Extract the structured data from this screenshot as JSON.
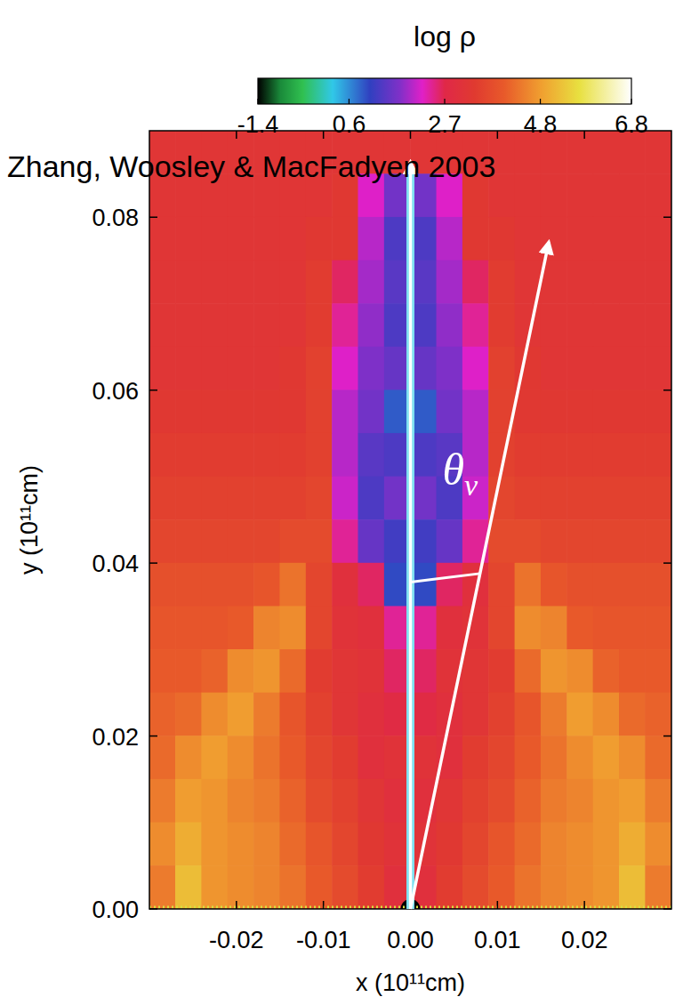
{
  "chart_data": {
    "type": "heatmap",
    "title": "log ρ",
    "annotations": [
      "Zhang, Woosley & MacFadyen 2003"
    ],
    "angle_label": {
      "text": "θ",
      "subscript": "v"
    },
    "x_label": "x (10¹¹cm)",
    "y_label": "y (10¹¹cm)",
    "xlim": [
      -0.03,
      0.03
    ],
    "ylim": [
      0,
      0.09
    ],
    "xticks": [
      -0.02,
      -0.01,
      {
        "value": 0,
        "label": "0.00"
      },
      0.01,
      0.02
    ],
    "yticks": [
      {
        "value": 0,
        "label": "0.00"
      },
      0.02,
      0.04,
      0.06,
      0.08
    ],
    "colorbar_range": [
      -1.4,
      6.8
    ],
    "colorbar_ticks": [
      -1.4,
      0.6,
      2.7,
      4.8,
      6.8
    ],
    "x": [
      -0.0285,
      -0.0255,
      -0.0225,
      -0.0195,
      -0.0165,
      -0.0135,
      -0.0105,
      -0.0075,
      -0.0045,
      -0.0015,
      0.0015,
      0.0045,
      0.0075,
      0.0105,
      0.0135,
      0.0165,
      0.0195,
      0.0225,
      0.0255,
      0.0285
    ],
    "y": [
      0.0875,
      0.0825,
      0.0775,
      0.0725,
      0.0675,
      0.0625,
      0.0575,
      0.0525,
      0.0475,
      0.0425,
      0.0375,
      0.0325,
      0.0275,
      0.0225,
      0.0175,
      0.0125,
      0.0075,
      0.0025
    ],
    "z": [
      [
        3.2,
        3.2,
        3.2,
        3.2,
        3.2,
        3.2,
        3.2,
        3.2,
        3.2,
        3.2,
        3.2,
        3.2,
        3.2,
        3.2,
        3.2,
        3.2,
        3.2,
        3.2,
        3.2,
        3.2
      ],
      [
        3.2,
        3.2,
        3.2,
        3.2,
        3.2,
        3.2,
        3.2,
        3.3,
        2.2,
        1.6,
        1.6,
        2.2,
        3.3,
        3.2,
        3.2,
        3.2,
        3.2,
        3.2,
        3.2,
        3.2
      ],
      [
        3.2,
        3.2,
        3.2,
        3.2,
        3.2,
        3.2,
        3.3,
        3.3,
        2.0,
        1.3,
        1.3,
        2.0,
        3.3,
        3.3,
        3.2,
        3.2,
        3.2,
        3.2,
        3.2,
        3.2
      ],
      [
        3.2,
        3.2,
        3.2,
        3.2,
        3.2,
        3.2,
        3.4,
        2.6,
        1.9,
        1.4,
        1.4,
        1.9,
        2.6,
        3.4,
        3.2,
        3.2,
        3.2,
        3.2,
        3.2,
        3.2
      ],
      [
        3.2,
        3.2,
        3.2,
        3.2,
        3.2,
        3.2,
        3.4,
        2.4,
        1.8,
        1.3,
        1.3,
        1.8,
        2.4,
        3.4,
        3.2,
        3.2,
        3.2,
        3.2,
        3.2,
        3.2
      ],
      [
        3.2,
        3.2,
        3.2,
        3.2,
        3.2,
        3.3,
        3.5,
        2.2,
        1.7,
        1.5,
        1.5,
        1.7,
        2.2,
        3.5,
        3.3,
        3.2,
        3.2,
        3.2,
        3.2,
        3.2
      ],
      [
        3.3,
        3.3,
        3.3,
        3.3,
        3.3,
        3.3,
        3.5,
        2.0,
        1.6,
        0.9,
        0.9,
        1.6,
        2.0,
        3.5,
        3.3,
        3.3,
        3.3,
        3.3,
        3.3,
        3.3
      ],
      [
        3.4,
        3.4,
        3.4,
        3.4,
        3.4,
        3.4,
        3.5,
        2.0,
        1.4,
        1.3,
        1.3,
        1.4,
        2.0,
        3.5,
        3.4,
        3.4,
        3.4,
        3.4,
        3.4,
        3.4
      ],
      [
        3.5,
        3.5,
        3.5,
        3.5,
        3.5,
        3.5,
        3.6,
        2.1,
        1.3,
        1.6,
        1.6,
        1.3,
        2.1,
        3.6,
        3.5,
        3.5,
        3.5,
        3.5,
        3.5,
        3.5
      ],
      [
        3.6,
        3.6,
        3.6,
        3.6,
        3.6,
        3.7,
        3.7,
        2.4,
        1.5,
        1.2,
        1.2,
        1.5,
        2.4,
        3.7,
        3.7,
        3.6,
        3.6,
        3.6,
        3.6,
        3.6
      ],
      [
        3.8,
        3.8,
        3.8,
        3.8,
        3.9,
        4.3,
        3.6,
        3.0,
        2.6,
        1.0,
        1.0,
        2.6,
        3.0,
        3.6,
        4.3,
        3.9,
        3.8,
        3.8,
        3.8,
        3.8
      ],
      [
        3.9,
        3.9,
        3.9,
        4.0,
        4.5,
        4.6,
        3.6,
        3.1,
        3.0,
        2.4,
        2.4,
        3.0,
        3.1,
        3.6,
        4.6,
        4.5,
        4.0,
        3.9,
        3.9,
        3.9
      ],
      [
        4.0,
        4.0,
        4.1,
        4.6,
        4.7,
        4.2,
        3.4,
        3.2,
        3.1,
        2.6,
        2.6,
        3.1,
        3.2,
        3.4,
        4.2,
        4.7,
        4.6,
        4.1,
        4.0,
        4.0
      ],
      [
        4.1,
        4.2,
        4.6,
        4.8,
        4.4,
        3.9,
        3.5,
        3.2,
        3.0,
        2.8,
        2.8,
        3.0,
        3.2,
        3.5,
        3.9,
        4.4,
        4.8,
        4.6,
        4.2,
        4.1
      ],
      [
        4.2,
        4.6,
        4.8,
        4.6,
        4.3,
        4.0,
        3.6,
        3.4,
        3.0,
        3.1,
        3.1,
        3.0,
        3.4,
        3.6,
        4.0,
        4.3,
        4.6,
        4.8,
        4.6,
        4.2
      ],
      [
        4.4,
        4.8,
        4.7,
        4.5,
        4.4,
        4.1,
        3.7,
        3.5,
        3.2,
        3.0,
        3.0,
        3.2,
        3.5,
        3.7,
        4.1,
        4.4,
        4.5,
        4.7,
        4.8,
        4.4
      ],
      [
        4.6,
        5.0,
        4.7,
        4.6,
        4.5,
        4.2,
        3.9,
        3.6,
        3.3,
        3.1,
        3.1,
        3.3,
        3.6,
        3.9,
        4.2,
        4.5,
        4.6,
        4.7,
        5.0,
        4.6
      ],
      [
        4.4,
        5.2,
        4.7,
        4.6,
        4.5,
        4.3,
        4.0,
        3.7,
        3.4,
        3.0,
        3.0,
        3.4,
        3.7,
        4.0,
        4.3,
        4.5,
        4.6,
        4.7,
        5.2,
        4.4
      ]
    ]
  }
}
